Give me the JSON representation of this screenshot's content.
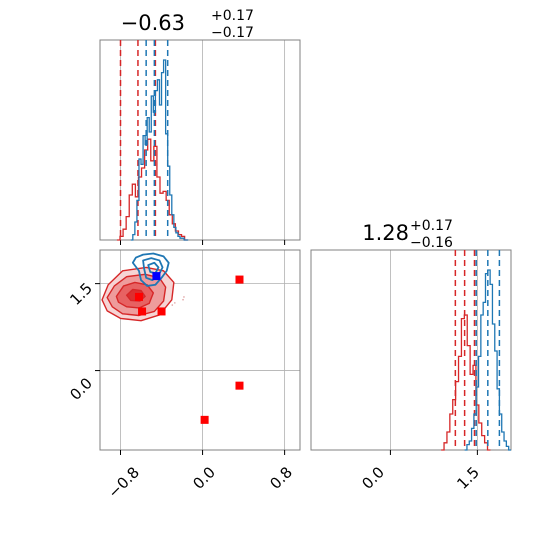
{
  "chart_data": {
    "type": "corner",
    "colors": {
      "red": "#d62728",
      "blue": "#1f77b4",
      "marker_red": "#ff0000",
      "marker_blue": "#0000ff",
      "grid": "#b0b0b0",
      "frame": "#808080"
    },
    "grid": true,
    "parameters": [
      {
        "title_main": "−0.63",
        "title_sup": "+0.17",
        "title_sub": "−0.17"
      },
      {
        "title_main": "1.28",
        "title_sup": "+0.17",
        "title_sub": "−0.16"
      }
    ],
    "ranges": {
      "x": [
        -1.0,
        0.95
      ],
      "y": [
        -1.37,
        2.08
      ]
    },
    "ticks": {
      "x": [
        {
          "v": -0.8,
          "label": "−0.8"
        },
        {
          "v": 0.0,
          "label": "0.0"
        },
        {
          "v": 0.8,
          "label": "0.8"
        }
      ],
      "y": [
        {
          "v": 0.0,
          "label": "0.0"
        },
        {
          "v": 1.5,
          "label": "1.5"
        }
      ]
    },
    "hist_x": {
      "red": {
        "x": [
          -0.82,
          -0.79,
          -0.76,
          -0.73,
          -0.7,
          -0.67,
          -0.64,
          -0.61,
          -0.58,
          -0.55,
          -0.52,
          -0.49,
          -0.46,
          -0.43,
          -0.4,
          -0.37,
          -0.34,
          -0.31,
          -0.28,
          -0.25,
          -0.22,
          -0.19,
          -0.16
        ],
        "y": [
          0.0,
          0.02,
          0.06,
          0.13,
          0.25,
          0.31,
          0.24,
          0.35,
          0.4,
          0.5,
          0.56,
          0.44,
          0.52,
          0.35,
          0.26,
          0.27,
          0.22,
          0.14,
          0.09,
          0.05,
          0.03,
          0.02,
          0.0
        ],
        "quantiles": [
          -0.8,
          -0.63,
          -0.46
        ]
      },
      "blue": {
        "x": [
          -0.69,
          -0.67,
          -0.65,
          -0.63,
          -0.61,
          -0.59,
          -0.57,
          -0.55,
          -0.53,
          -0.51,
          -0.49,
          -0.47,
          -0.45,
          -0.43,
          -0.41,
          -0.39,
          -0.37,
          -0.35,
          -0.33,
          -0.31,
          -0.29,
          -0.27,
          -0.25,
          -0.23,
          -0.21,
          -0.19,
          -0.17,
          -0.15
        ],
        "y": [
          0.0,
          0.03,
          0.1,
          0.22,
          0.45,
          0.42,
          0.58,
          0.53,
          0.68,
          0.6,
          0.8,
          0.71,
          0.83,
          0.89,
          0.75,
          0.93,
          1.0,
          0.59,
          0.41,
          0.25,
          0.14,
          0.07,
          0.04,
          0.02,
          0.01,
          0.01,
          0.0,
          0.0
        ],
        "quantiles": [
          -0.55,
          -0.47,
          -0.34
        ]
      }
    },
    "hist_y": {
      "red": {
        "x": [
          0.9,
          0.95,
          1.0,
          1.05,
          1.1,
          1.15,
          1.2,
          1.25,
          1.3,
          1.35,
          1.4,
          1.45,
          1.5,
          1.55,
          1.6,
          1.65,
          1.7
        ],
        "y": [
          0.0,
          0.04,
          0.1,
          0.2,
          0.28,
          0.38,
          0.52,
          0.73,
          0.75,
          0.58,
          0.42,
          0.47,
          0.25,
          0.15,
          0.08,
          0.04,
          0.0
        ],
        "quantiles": [
          1.12,
          1.28,
          1.45
        ]
      },
      "blue": {
        "x": [
          1.3,
          1.34,
          1.38,
          1.42,
          1.46,
          1.5,
          1.54,
          1.58,
          1.62,
          1.66,
          1.7,
          1.74,
          1.78,
          1.82,
          1.86,
          1.9,
          1.94,
          1.98,
          2.02,
          2.06
        ],
        "y": [
          0.0,
          0.03,
          0.05,
          0.12,
          0.2,
          0.35,
          0.52,
          0.75,
          0.82,
          0.98,
          1.0,
          0.92,
          0.7,
          0.55,
          0.34,
          0.2,
          0.1,
          0.05,
          0.02,
          0.0
        ],
        "quantiles": [
          1.48,
          1.68,
          1.88
        ]
      }
    },
    "contours_red": [
      [
        [
          -0.98,
          1.22
        ],
        [
          -0.92,
          1.48
        ],
        [
          -0.78,
          1.72
        ],
        [
          -0.55,
          1.78
        ],
        [
          -0.38,
          1.72
        ],
        [
          -0.28,
          1.52
        ],
        [
          -0.3,
          1.22
        ],
        [
          -0.42,
          0.96
        ],
        [
          -0.6,
          0.86
        ],
        [
          -0.8,
          0.9
        ],
        [
          -0.93,
          1.03
        ]
      ],
      [
        [
          -0.93,
          1.26
        ],
        [
          -0.86,
          1.46
        ],
        [
          -0.74,
          1.62
        ],
        [
          -0.56,
          1.66
        ],
        [
          -0.42,
          1.6
        ],
        [
          -0.36,
          1.44
        ],
        [
          -0.38,
          1.2
        ],
        [
          -0.47,
          1.02
        ],
        [
          -0.62,
          0.95
        ],
        [
          -0.78,
          0.98
        ],
        [
          -0.88,
          1.1
        ]
      ],
      [
        [
          -0.84,
          1.28
        ],
        [
          -0.77,
          1.46
        ],
        [
          -0.66,
          1.52
        ],
        [
          -0.54,
          1.48
        ],
        [
          -0.48,
          1.34
        ],
        [
          -0.52,
          1.16
        ],
        [
          -0.62,
          1.08
        ],
        [
          -0.74,
          1.1
        ],
        [
          -0.82,
          1.18
        ]
      ],
      [
        [
          -0.74,
          1.3
        ],
        [
          -0.68,
          1.4
        ],
        [
          -0.6,
          1.38
        ],
        [
          -0.56,
          1.28
        ],
        [
          -0.61,
          1.2
        ],
        [
          -0.7,
          1.21
        ]
      ]
    ],
    "contours_blue": [
      [
        [
          -0.65,
          1.95
        ],
        [
          -0.58,
          2.0
        ],
        [
          -0.48,
          2.02
        ],
        [
          -0.38,
          1.97
        ],
        [
          -0.33,
          1.86
        ],
        [
          -0.35,
          1.72
        ],
        [
          -0.4,
          1.6
        ],
        [
          -0.46,
          1.48
        ],
        [
          -0.54,
          1.46
        ],
        [
          -0.6,
          1.56
        ],
        [
          -0.62,
          1.72
        ],
        [
          -0.68,
          1.86
        ]
      ],
      [
        [
          -0.58,
          1.9
        ],
        [
          -0.5,
          1.94
        ],
        [
          -0.42,
          1.9
        ],
        [
          -0.39,
          1.78
        ],
        [
          -0.43,
          1.64
        ],
        [
          -0.49,
          1.56
        ],
        [
          -0.55,
          1.6
        ],
        [
          -0.57,
          1.76
        ]
      ],
      [
        [
          -0.53,
          1.82
        ],
        [
          -0.47,
          1.86
        ],
        [
          -0.43,
          1.78
        ],
        [
          -0.46,
          1.68
        ],
        [
          -0.51,
          1.7
        ]
      ]
    ],
    "red_markers": [
      {
        "x": -0.62,
        "y": 1.27
      },
      {
        "x": -0.59,
        "y": 1.02
      },
      {
        "x": -0.4,
        "y": 1.02
      },
      {
        "x": 0.36,
        "y": 1.57
      },
      {
        "x": 0.36,
        "y": -0.26
      },
      {
        "x": 0.02,
        "y": -0.85
      }
    ],
    "blue_markers": [
      {
        "x": -0.45,
        "y": 1.63
      }
    ]
  }
}
